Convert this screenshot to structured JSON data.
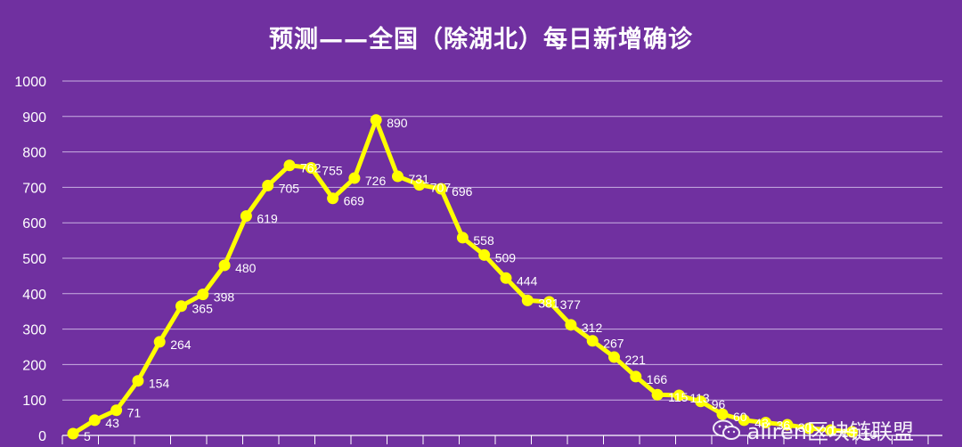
{
  "chart_data": {
    "type": "line",
    "title": "预测——全国（除湖北）每日新增确诊",
    "ylim": [
      0,
      1000
    ],
    "yticks": [
      0,
      100,
      200,
      300,
      400,
      500,
      600,
      700,
      800,
      900,
      1000
    ],
    "grid": true,
    "legend": "none",
    "series": [
      {
        "color": "#ffff00",
        "values": [
          5,
          43,
          71,
          154,
          264,
          365,
          398,
          480,
          619,
          705,
          762,
          755,
          669,
          726,
          890,
          731,
          707,
          696,
          558,
          509,
          444,
          381,
          377,
          312,
          267,
          221,
          166,
          115,
          113,
          96,
          60,
          43,
          36,
          30,
          20,
          15,
          10
        ],
        "labels": [
          "5",
          "43",
          "71",
          "154",
          "264",
          "365",
          "398",
          "480",
          "619",
          "705",
          "762",
          "755",
          "669",
          "726",
          "890",
          "731",
          "707",
          "696",
          "558",
          "509",
          "444",
          "381",
          "377",
          "312",
          "267",
          "221",
          "166",
          "115",
          "113",
          "96",
          "60",
          "43",
          "36",
          "30",
          "20",
          "15",
          "10"
        ]
      }
    ]
  },
  "watermark": {
    "text": "aliren区块链联盟",
    "icon": "wechat-icon"
  },
  "colors": {
    "background": "#7030a0",
    "line": "#ffff00",
    "grid": "#d9c7ee"
  }
}
